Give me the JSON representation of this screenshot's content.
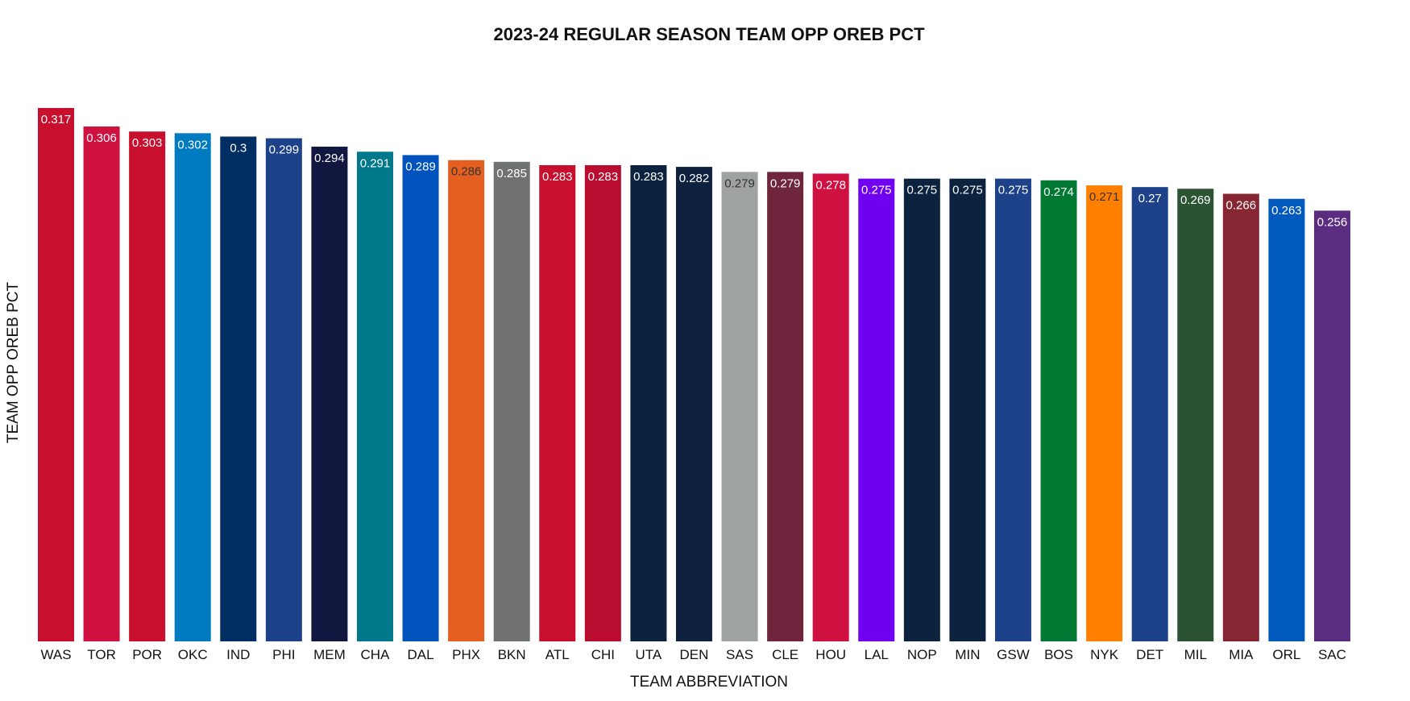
{
  "chart_data": {
    "type": "bar",
    "title": "2023-24 REGULAR SEASON TEAM OPP OREB PCT",
    "xlabel": "TEAM ABBREVIATION",
    "ylabel": "TEAM OPP OREB PCT",
    "ylim": [
      0,
      0.33
    ],
    "grid": false,
    "categories": [
      "WAS",
      "TOR",
      "POR",
      "OKC",
      "IND",
      "PHI",
      "MEM",
      "CHA",
      "DAL",
      "PHX",
      "BKN",
      "ATL",
      "CHI",
      "UTA",
      "DEN",
      "SAS",
      "CLE",
      "HOU",
      "LAL",
      "NOP",
      "MIN",
      "GSW",
      "BOS",
      "NYK",
      "DET",
      "MIL",
      "MIA",
      "ORL",
      "SAC"
    ],
    "values": [
      0.317,
      0.306,
      0.303,
      0.302,
      0.3,
      0.299,
      0.294,
      0.291,
      0.289,
      0.286,
      0.285,
      0.283,
      0.283,
      0.283,
      0.282,
      0.279,
      0.279,
      0.278,
      0.275,
      0.275,
      0.275,
      0.275,
      0.274,
      0.271,
      0.27,
      0.269,
      0.266,
      0.263,
      0.256
    ],
    "value_labels": [
      "0.317",
      "0.306",
      "0.303",
      "0.302",
      "0.3",
      "0.299",
      "0.294",
      "0.291",
      "0.289",
      "0.286",
      "0.285",
      "0.283",
      "0.283",
      "0.283",
      "0.282",
      "0.279",
      "0.279",
      "0.278",
      "0.275",
      "0.275",
      "0.275",
      "0.275",
      "0.274",
      "0.271",
      "0.27",
      "0.269",
      "0.266",
      "0.263",
      "0.256"
    ],
    "colors": [
      "#C8102E",
      "#CE1141",
      "#C8102E",
      "#007AC1",
      "#002D62",
      "#1D428A",
      "#12173F",
      "#00788C",
      "#0053BC",
      "#E56020",
      "#707271",
      "#C8102E",
      "#BA0C2F",
      "#0C2340",
      "#0E2240",
      "#9EA2A2",
      "#6F263D",
      "#CE1141",
      "#7000F0",
      "#0C2340",
      "#0C2340",
      "#1D428A",
      "#007A33",
      "#FF8000",
      "#1D428A",
      "#2C5234",
      "#862633",
      "#0059BC",
      "#5A2D81"
    ],
    "label_colors": [
      "#ffffff",
      "#ffffff",
      "#ffffff",
      "#ffffff",
      "#ffffff",
      "#ffffff",
      "#ffffff",
      "#ffffff",
      "#ffffff",
      "#333333",
      "#ffffff",
      "#ffffff",
      "#ffffff",
      "#ffffff",
      "#ffffff",
      "#333333",
      "#ffffff",
      "#ffffff",
      "#ffffff",
      "#ffffff",
      "#ffffff",
      "#ffffff",
      "#ffffff",
      "#333333",
      "#ffffff",
      "#ffffff",
      "#ffffff",
      "#ffffff",
      "#ffffff"
    ]
  }
}
